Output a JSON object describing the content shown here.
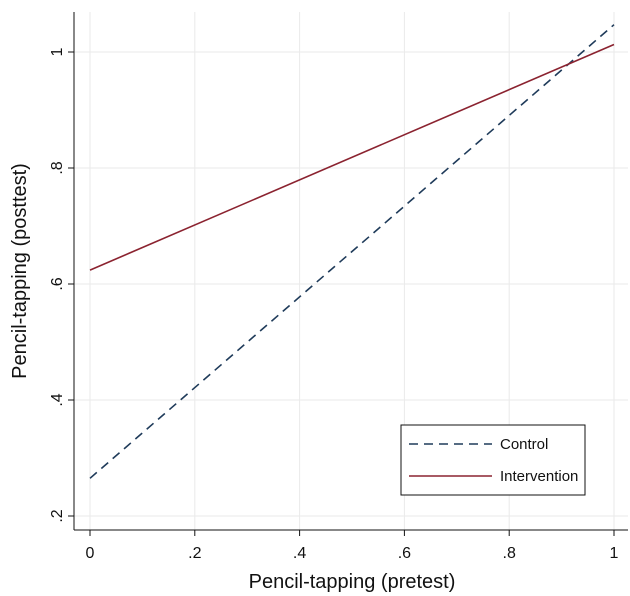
{
  "chart_data": {
    "type": "line",
    "title": "",
    "xlabel": "Pencil-tapping (pretest)",
    "ylabel": "Pencil-tapping (posttest)",
    "xlim": [
      0,
      1
    ],
    "ylim": [
      0.2,
      1.07
    ],
    "xticks": [
      0,
      0.2,
      0.4,
      0.6,
      0.8,
      1
    ],
    "xtick_labels": [
      "0",
      ".2",
      ".4",
      ".6",
      ".8",
      "1"
    ],
    "yticks": [
      0.2,
      0.4,
      0.6,
      0.8,
      1
    ],
    "ytick_labels": [
      ".2",
      ".4",
      ".6",
      ".8",
      "1"
    ],
    "grid": true,
    "legend_position": "bottom-right",
    "series": [
      {
        "name": "Control",
        "x": [
          0,
          1
        ],
        "y": [
          0.265,
          1.047
        ],
        "color": "#1f3b5a",
        "style": "dashed"
      },
      {
        "name": "Intervention",
        "x": [
          0,
          1
        ],
        "y": [
          0.624,
          1.013
        ],
        "color": "#8b2330",
        "style": "solid"
      }
    ]
  }
}
